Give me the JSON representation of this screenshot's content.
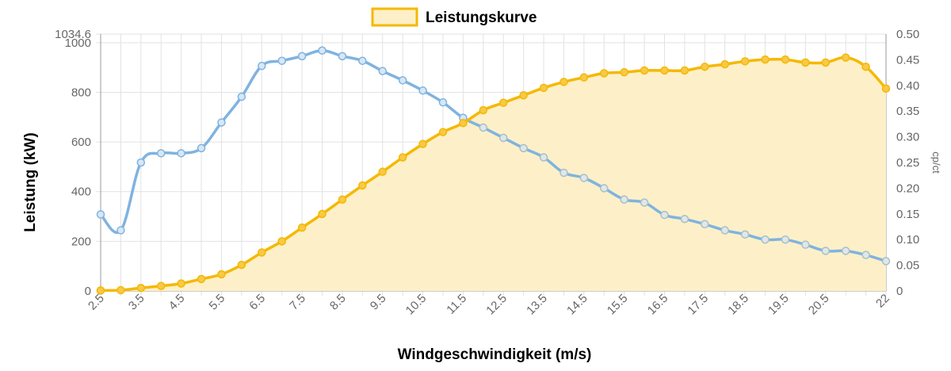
{
  "colors": {
    "power_line": "#f5b800",
    "power_fill": "#fdf0c8",
    "power_point": "#f7c948",
    "cp_line": "#7fb3e0",
    "cp_line_over_fill": "#a9bfc4",
    "grid": "#e2e2e2",
    "axis": "#999999"
  },
  "chart_data": {
    "type": "line",
    "legend": {
      "label": "Leistungskurve",
      "position": "top"
    },
    "xlabel": "Windgeschwindigkeit (m/s)",
    "ylabel": "Leistung (kW)",
    "y2label": "cp/ct",
    "x_tick_labels": [
      "2.5",
      "3.5",
      "4.5",
      "5.5",
      "6.5",
      "7.5",
      "8.5",
      "9.5",
      "10.5",
      "11.5",
      "12.5",
      "13.5",
      "14.5",
      "15.5",
      "16.5",
      "17.5",
      "18.5",
      "19.5",
      "20.5",
      "22"
    ],
    "x": [
      2.5,
      3,
      3.5,
      4,
      4.5,
      5,
      5.5,
      6,
      6.5,
      7,
      7.5,
      8,
      8.5,
      9,
      9.5,
      10,
      10.5,
      11,
      11.5,
      12,
      12.5,
      13,
      13.5,
      14,
      14.5,
      15,
      15.5,
      16,
      16.5,
      17,
      17.5,
      18,
      18.5,
      19,
      19.5,
      20,
      20.5,
      21,
      21.5,
      22
    ],
    "ylim": [
      0,
      1034.6
    ],
    "y_ticks": [
      "1034.6",
      "1000",
      "800",
      "600",
      "400",
      "200",
      "0"
    ],
    "y2lim": [
      0,
      0.5
    ],
    "y2_ticks": [
      "0.50",
      "0.45",
      "0.40",
      "0.35",
      "0.30",
      "0.25",
      "0.20",
      "0.15",
      "0.10",
      "0.05",
      "0"
    ],
    "series": [
      {
        "name": "Leistungskurve",
        "axis": "left",
        "filled": true,
        "values": [
          2,
          3,
          12,
          20,
          30,
          48,
          67,
          105,
          155,
          200,
          255,
          310,
          368,
          425,
          480,
          538,
          592,
          640,
          676,
          728,
          758,
          788,
          818,
          842,
          860,
          877,
          881,
          888,
          888,
          888,
          903,
          913,
          925,
          932,
          932,
          920,
          920,
          940,
          903,
          815
        ]
      },
      {
        "axis": "right",
        "filled": false,
        "values": [
          0.149,
          0.118,
          0.25,
          0.268,
          0.268,
          0.278,
          0.328,
          0.378,
          0.438,
          0.448,
          0.457,
          0.468,
          0.457,
          0.448,
          0.428,
          0.41,
          0.39,
          0.367,
          0.337,
          0.318,
          0.298,
          0.278,
          0.26,
          0.23,
          0.22,
          0.2,
          0.178,
          0.172,
          0.148,
          0.14,
          0.13,
          0.118,
          0.11,
          0.1,
          0.1,
          0.09,
          0.078,
          0.078,
          0.07,
          0.058
        ]
      }
    ]
  }
}
